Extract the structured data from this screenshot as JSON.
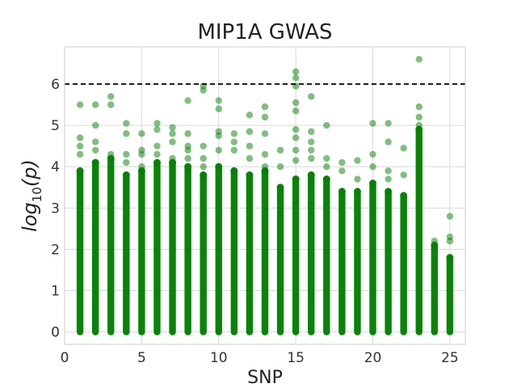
{
  "chart_data": {
    "type": "scatter",
    "title": "MIP1A GWAS",
    "xlabel": "SNP",
    "ylabel": {
      "prefix": "log",
      "subscript": "10",
      "suffix": "(p)"
    },
    "xlim": [
      0,
      26
    ],
    "ylim": [
      -0.3,
      6.9
    ],
    "xticks": [
      0,
      5,
      10,
      15,
      20,
      25
    ],
    "yticks": [
      0,
      1,
      2,
      3,
      4,
      5,
      6
    ],
    "grid": true,
    "threshold": {
      "y": 6,
      "style": "dashed",
      "color": "#000000"
    },
    "marker_color": "#008000",
    "marker_alpha": 0.5,
    "series": [
      {
        "x_values": [
          1,
          2,
          3,
          4,
          5,
          6,
          7,
          8,
          9,
          10,
          11,
          12,
          13,
          14,
          15,
          16,
          17,
          18,
          19,
          20,
          21,
          22,
          23,
          24,
          25
        ],
        "dense_max": [
          3.9,
          4.1,
          4.2,
          3.8,
          3.9,
          4.1,
          4.1,
          4.0,
          3.8,
          4.0,
          3.9,
          3.8,
          3.9,
          3.5,
          3.7,
          3.8,
          3.7,
          3.4,
          3.4,
          3.6,
          3.4,
          3.3,
          4.9,
          2.1,
          1.8
        ],
        "outliers": [
          [
            1,
            4.7
          ],
          [
            1,
            4.5
          ],
          [
            1,
            5.5
          ],
          [
            1,
            4.3
          ],
          [
            2,
            5.5
          ],
          [
            2,
            5.0
          ],
          [
            2,
            4.6
          ],
          [
            2,
            4.4
          ],
          [
            3,
            5.7
          ],
          [
            3,
            5.5
          ],
          [
            3,
            4.3
          ],
          [
            4,
            5.05
          ],
          [
            4,
            4.8
          ],
          [
            4,
            4.3
          ],
          [
            4,
            4.1
          ],
          [
            5,
            4.8
          ],
          [
            5,
            4.4
          ],
          [
            5,
            4.3
          ],
          [
            5,
            4.0
          ],
          [
            6,
            5.05
          ],
          [
            6,
            4.9
          ],
          [
            6,
            4.5
          ],
          [
            6,
            4.3
          ],
          [
            7,
            4.95
          ],
          [
            7,
            4.8
          ],
          [
            7,
            4.6
          ],
          [
            7,
            4.2
          ],
          [
            8,
            5.6
          ],
          [
            8,
            4.8
          ],
          [
            8,
            4.5
          ],
          [
            8,
            4.4
          ],
          [
            8,
            4.2
          ],
          [
            9,
            5.95
          ],
          [
            9,
            5.85
          ],
          [
            9,
            4.5
          ],
          [
            9,
            4.2
          ],
          [
            9,
            4.0
          ],
          [
            10,
            5.6
          ],
          [
            10,
            5.4
          ],
          [
            10,
            4.85
          ],
          [
            10,
            4.75
          ],
          [
            10,
            4.4
          ],
          [
            11,
            4.8
          ],
          [
            11,
            4.6
          ],
          [
            11,
            4.4
          ],
          [
            12,
            5.25
          ],
          [
            12,
            4.85
          ],
          [
            12,
            4.5
          ],
          [
            12,
            4.2
          ],
          [
            13,
            5.45
          ],
          [
            13,
            5.2
          ],
          [
            13,
            4.8
          ],
          [
            13,
            4.3
          ],
          [
            13,
            4.0
          ],
          [
            14,
            4.4
          ],
          [
            14,
            4.0
          ],
          [
            15,
            6.3
          ],
          [
            15,
            6.15
          ],
          [
            15,
            5.95
          ],
          [
            15,
            5.55
          ],
          [
            15,
            5.35
          ],
          [
            15,
            4.9
          ],
          [
            15,
            4.7
          ],
          [
            15,
            4.4
          ],
          [
            15,
            4.15
          ],
          [
            16,
            5.7
          ],
          [
            16,
            4.85
          ],
          [
            16,
            4.6
          ],
          [
            16,
            4.4
          ],
          [
            16,
            4.2
          ],
          [
            17,
            5.0
          ],
          [
            17,
            4.2
          ],
          [
            17,
            4.0
          ],
          [
            18,
            4.1
          ],
          [
            18,
            3.9
          ],
          [
            19,
            4.15
          ],
          [
            19,
            3.7
          ],
          [
            20,
            5.05
          ],
          [
            20,
            4.3
          ],
          [
            20,
            4.0
          ],
          [
            21,
            5.05
          ],
          [
            21,
            4.6
          ],
          [
            21,
            3.9
          ],
          [
            21,
            3.7
          ],
          [
            22,
            4.45
          ],
          [
            22,
            3.8
          ],
          [
            23,
            6.6
          ],
          [
            23,
            5.45
          ],
          [
            23,
            5.2
          ],
          [
            23,
            5.0
          ],
          [
            24,
            2.2
          ],
          [
            24,
            2.1
          ],
          [
            25,
            2.8
          ],
          [
            25,
            2.3
          ],
          [
            25,
            2.2
          ]
        ]
      }
    ]
  }
}
